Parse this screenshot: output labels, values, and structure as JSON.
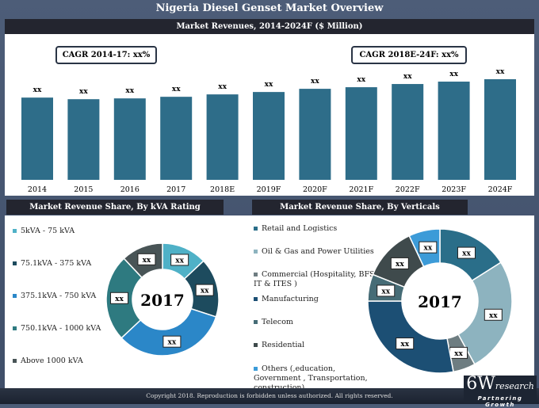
{
  "title": "Nigeria Diesel Genset Market Overview",
  "footer": "Copyright 2018. Reproduction is forbidden unless authorized. All rights reserved.",
  "logo": {
    "main": "6W",
    "sub": "research",
    "tagline": "Partnering Growth"
  },
  "chart_data": [
    {
      "type": "bar",
      "title": "Market Revenues, 2014-2024F ($ Million)",
      "categories": [
        "2014",
        "2015",
        "2016",
        "2017",
        "2018E",
        "2019F",
        "2020F",
        "2021F",
        "2022F",
        "2023F",
        "2024F"
      ],
      "values": [
        103,
        101,
        102,
        104,
        107,
        110,
        114,
        116,
        120,
        123,
        126
      ],
      "data_labels": [
        "xx",
        "xx",
        "xx",
        "xx",
        "xx",
        "xx",
        "xx",
        "xx",
        "xx",
        "xx",
        "xx"
      ],
      "annotations": [
        "CAGR 2014-17: xx%",
        "CAGR 2018E-24F: xx%"
      ],
      "color": "#2e6d89",
      "grid": false
    },
    {
      "type": "pie",
      "title": "Market Revenue Share, By kVA Rating",
      "center_label": "2017",
      "labels": [
        "5kVA - 75 kVA",
        "75.1kVA - 375 kVA",
        "375.1kVA - 750 kVA",
        "750.1kVA - 1000 kVA",
        "Above 1000 kVA"
      ],
      "values": [
        13,
        17,
        33,
        25,
        12
      ],
      "data_labels": [
        "xx",
        "xx",
        "xx",
        "xx",
        "xx"
      ],
      "colors": [
        "#4fb1c7",
        "#1d4b5e",
        "#2b87c8",
        "#2e7a80",
        "#485456"
      ],
      "legend": "left"
    },
    {
      "type": "pie",
      "title": "Market Revenue Share, By Verticals",
      "center_label": "2017",
      "labels": [
        "Retail and Logistics",
        "Oil & Gas and Power Utilities",
        "Commercial (Hospitality, BFSI, IT & ITES )",
        "Manufacturing",
        "Telecom",
        "Residential",
        "Others (,education, Government , Transportation, construction)"
      ],
      "values": [
        16,
        26,
        5,
        28,
        6,
        12,
        7
      ],
      "data_labels": [
        "xx",
        "xx",
        "xx",
        "xx",
        "xx",
        "xx",
        "xx"
      ],
      "colors": [
        "#2a6e89",
        "#8db3bf",
        "#6e7d81",
        "#1c4f74",
        "#466c76",
        "#3f4a4c",
        "#3c9bd8"
      ],
      "legend": "left"
    }
  ]
}
